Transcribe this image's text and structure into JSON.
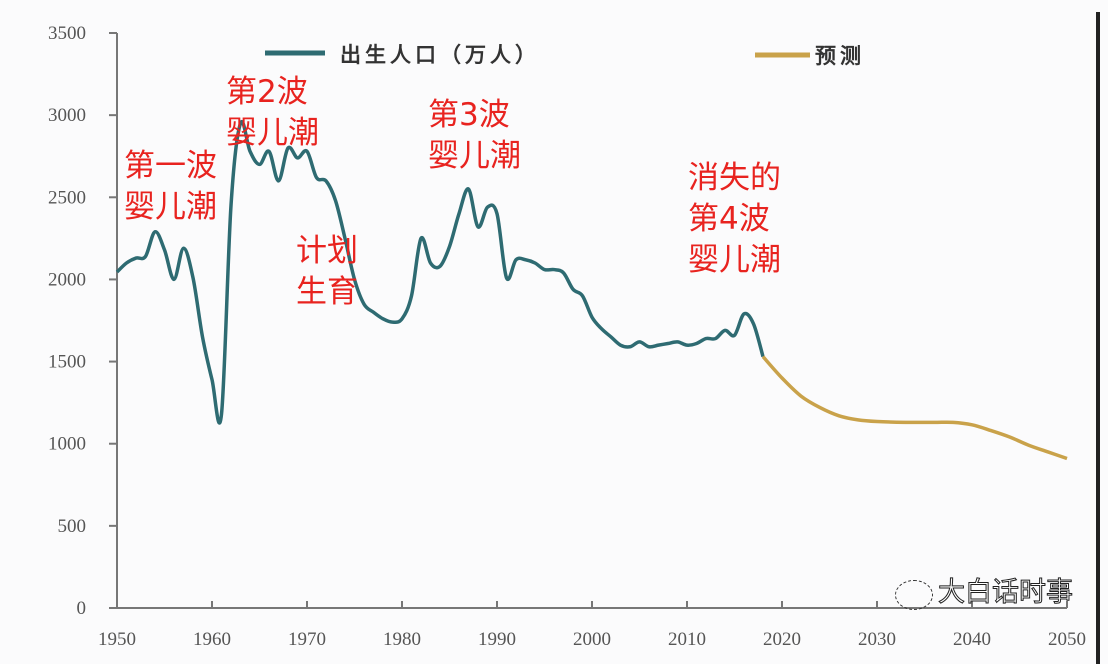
{
  "chart_data": {
    "type": "line",
    "title": "",
    "xlabel": "",
    "ylabel": "",
    "xlim": [
      1950,
      2050
    ],
    "ylim": [
      0,
      3500
    ],
    "x_ticks": [
      "1950",
      "1960",
      "1970",
      "1980",
      "1990",
      "2000",
      "2010",
      "2020",
      "2030",
      "2040",
      "2050"
    ],
    "y_ticks": [
      "0",
      "500",
      "1000",
      "1500",
      "2000",
      "2500",
      "3000",
      "3500"
    ],
    "legend_position": "top",
    "series": [
      {
        "name": "出生人口（万人）",
        "color": "#2e6b72",
        "x": [
          1950,
          1951,
          1952,
          1953,
          1954,
          1955,
          1956,
          1957,
          1958,
          1959,
          1960,
          1961,
          1962,
          1963,
          1964,
          1965,
          1966,
          1967,
          1968,
          1969,
          1970,
          1971,
          1972,
          1973,
          1974,
          1975,
          1976,
          1977,
          1978,
          1979,
          1980,
          1981,
          1982,
          1983,
          1984,
          1985,
          1986,
          1987,
          1988,
          1989,
          1990,
          1991,
          1992,
          1993,
          1994,
          1995,
          1996,
          1997,
          1998,
          1999,
          2000,
          2001,
          2002,
          2003,
          2004,
          2005,
          2006,
          2007,
          2008,
          2009,
          2010,
          2011,
          2012,
          2013,
          2014,
          2015,
          2016,
          2017,
          2018
        ],
        "y": [
          2045,
          2100,
          2130,
          2140,
          2290,
          2180,
          2000,
          2190,
          2010,
          1650,
          1390,
          1180,
          2450,
          2950,
          2780,
          2700,
          2780,
          2600,
          2800,
          2740,
          2780,
          2620,
          2600,
          2480,
          2250,
          2000,
          1850,
          1800,
          1760,
          1740,
          1760,
          1900,
          2250,
          2100,
          2080,
          2200,
          2400,
          2550,
          2320,
          2440,
          2400,
          2010,
          2120,
          2120,
          2100,
          2060,
          2060,
          2040,
          1940,
          1900,
          1770,
          1700,
          1650,
          1600,
          1590,
          1620,
          1590,
          1600,
          1610,
          1620,
          1600,
          1610,
          1640,
          1640,
          1690,
          1660,
          1790,
          1730,
          1530
        ]
      },
      {
        "name": "预测",
        "color": "#c9a24a",
        "x": [
          2018,
          2020,
          2022,
          2024,
          2026,
          2028,
          2030,
          2033,
          2036,
          2038,
          2040,
          2042,
          2044,
          2046,
          2048,
          2050
        ],
        "y": [
          1530,
          1400,
          1290,
          1220,
          1170,
          1145,
          1135,
          1130,
          1130,
          1130,
          1115,
          1080,
          1040,
          990,
          950,
          910
        ]
      }
    ],
    "annotations": [
      "第一波\n婴儿潮",
      "第2波\n婴儿潮",
      "计划\n生育",
      "第3波\n婴儿潮",
      "消失的\n第4波\n婴儿潮"
    ]
  },
  "watermark": "大白话时事"
}
